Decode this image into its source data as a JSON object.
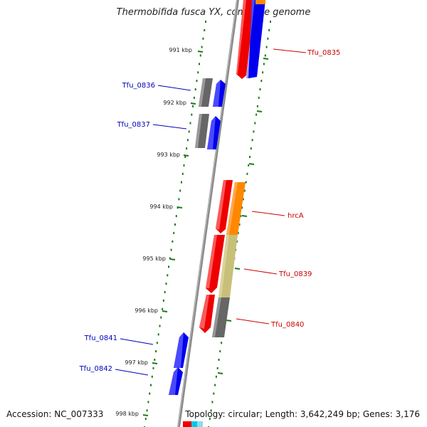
{
  "title": "Thermobifida fusca YX, complete genome",
  "ticks": [
    "991 kbp",
    "992 kbp",
    "993 kbp",
    "994 kbp",
    "995 kbp",
    "996 kbp",
    "997 kbp",
    "998 kbp"
  ],
  "gene_labels": {
    "tfu_0835": "Tfu_0835",
    "tfu_0836": "Tfu_0836",
    "tfu_0837": "Tfu_0837",
    "hrca": "hrcA",
    "tfu_0839": "Tfu_0839",
    "tfu_0840": "Tfu_0840",
    "tfu_0841": "Tfu_0841",
    "tfu_0842": "Tfu_0842"
  },
  "colors": {
    "backbone": "#8a8a8a",
    "tick": "#1a7a1a",
    "reverse_label": "#0000bb",
    "forward_label": "#cc0000",
    "red_gene": "#ee0000",
    "blue_gene": "#0000ee",
    "gray_gene": "#666666",
    "orange_gene": "#ff8800",
    "khaki_gene": "#c8c078"
  },
  "footer": {
    "accession": "Accession: NC_007333",
    "summary": "Topology: circular; Length: 3,642,249 bp; Genes: 3,176"
  }
}
